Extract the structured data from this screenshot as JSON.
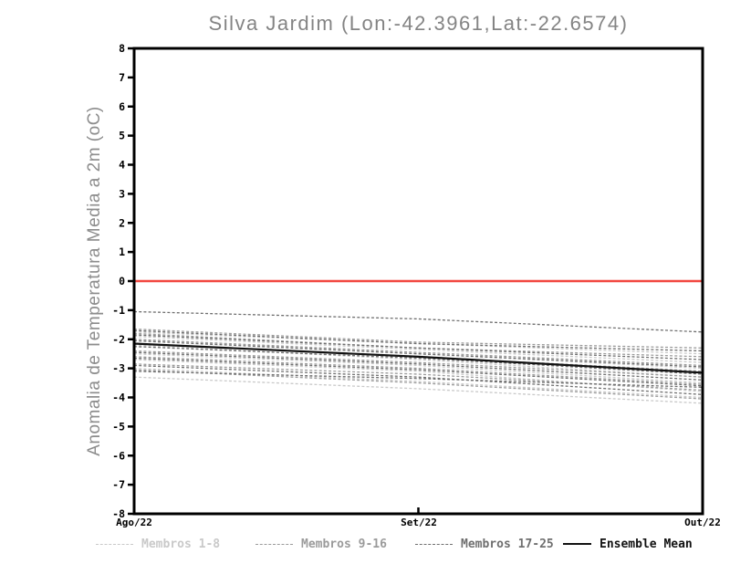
{
  "chart_data": {
    "type": "line",
    "title": "Silva Jardim (Lon:-42.3961,Lat:-22.6574)",
    "ylabel": "Anomalia de Temperatura Media a 2m (oC)",
    "xlabel": "",
    "categories": [
      "Ago/22",
      "Set/22",
      "Out/22"
    ],
    "ylim": [
      -8,
      8
    ],
    "yticks": [
      8,
      7,
      6,
      5,
      4,
      3,
      2,
      1,
      0,
      -1,
      -2,
      -3,
      -4,
      -5,
      -6,
      -7,
      -8
    ],
    "grid": false,
    "legend_position": "bottom",
    "zero_line": {
      "value": 0,
      "color": "#f2473f"
    },
    "axis_color": "#000000",
    "groups": [
      {
        "id": "g1",
        "label": "Membros 1-8",
        "color": "#c9c9c9",
        "style": "dashed"
      },
      {
        "id": "g2",
        "label": "Membros 9-16",
        "color": "#9b9b9b",
        "style": "dashed"
      },
      {
        "id": "g3",
        "label": "Membros 17-25",
        "color": "#6f6f6f",
        "style": "dashed"
      },
      {
        "id": "mean",
        "label": "Ensemble Mean",
        "color": "#111111",
        "style": "solid"
      }
    ],
    "series": [
      {
        "name": "Membro 1",
        "group": "g1",
        "values": [
          -1.75,
          -2.15,
          -2.5
        ]
      },
      {
        "name": "Membro 2",
        "group": "g1",
        "values": [
          -1.9,
          -2.35,
          -2.8
        ]
      },
      {
        "name": "Membro 3",
        "group": "g1",
        "values": [
          -2.0,
          -2.5,
          -3.0
        ]
      },
      {
        "name": "Membro 4",
        "group": "g1",
        "values": [
          -2.2,
          -2.7,
          -3.3
        ]
      },
      {
        "name": "Membro 5",
        "group": "g1",
        "values": [
          -2.5,
          -2.9,
          -3.5
        ]
      },
      {
        "name": "Membro 6",
        "group": "g1",
        "values": [
          -2.7,
          -3.1,
          -3.8
        ]
      },
      {
        "name": "Membro 7",
        "group": "g1",
        "values": [
          -3.0,
          -3.45,
          -4.0
        ]
      },
      {
        "name": "Membro 8",
        "group": "g1",
        "values": [
          -3.3,
          -3.7,
          -4.2
        ]
      },
      {
        "name": "Membro 9",
        "group": "g2",
        "values": [
          -1.65,
          -2.1,
          -2.3
        ]
      },
      {
        "name": "Membro 10",
        "group": "g2",
        "values": [
          -1.8,
          -2.3,
          -2.6
        ]
      },
      {
        "name": "Membro 11",
        "group": "g2",
        "values": [
          -2.0,
          -2.45,
          -2.9
        ]
      },
      {
        "name": "Membro 12",
        "group": "g2",
        "values": [
          -2.15,
          -2.6,
          -3.1
        ]
      },
      {
        "name": "Membro 13",
        "group": "g2",
        "values": [
          -2.4,
          -2.8,
          -3.3
        ]
      },
      {
        "name": "Membro 14",
        "group": "g2",
        "values": [
          -2.6,
          -3.0,
          -3.55
        ]
      },
      {
        "name": "Membro 15",
        "group": "g2",
        "values": [
          -2.85,
          -3.2,
          -3.75
        ]
      },
      {
        "name": "Membro 16",
        "group": "g2",
        "values": [
          -3.05,
          -3.5,
          -4.05
        ]
      },
      {
        "name": "Membro 17",
        "group": "g3",
        "values": [
          -1.05,
          -1.3,
          -1.75
        ]
      },
      {
        "name": "Membro 18",
        "group": "g3",
        "values": [
          -1.7,
          -2.15,
          -2.4
        ]
      },
      {
        "name": "Membro 19",
        "group": "g3",
        "values": [
          -1.85,
          -2.3,
          -2.7
        ]
      },
      {
        "name": "Membro 20",
        "group": "g3",
        "values": [
          -2.05,
          -2.5,
          -2.95
        ]
      },
      {
        "name": "Membro 21",
        "group": "g3",
        "values": [
          -2.25,
          -2.65,
          -3.2
        ]
      },
      {
        "name": "Membro 22",
        "group": "g3",
        "values": [
          -2.45,
          -2.85,
          -3.4
        ]
      },
      {
        "name": "Membro 23",
        "group": "g3",
        "values": [
          -2.65,
          -3.05,
          -3.6
        ]
      },
      {
        "name": "Membro 24",
        "group": "g3",
        "values": [
          -2.9,
          -3.3,
          -3.9
        ]
      },
      {
        "name": "Membro 25",
        "group": "g3",
        "values": [
          -3.1,
          -3.35,
          -3.65
        ]
      }
    ],
    "ensemble_mean": {
      "name": "Ensemble Mean",
      "values": [
        -2.15,
        -2.6,
        -3.15
      ]
    }
  }
}
